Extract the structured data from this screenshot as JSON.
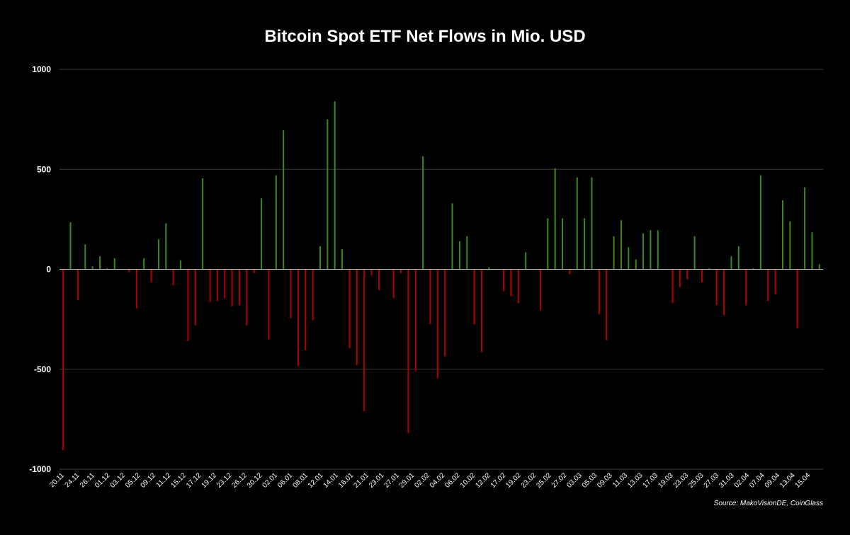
{
  "chart_data": {
    "type": "bar",
    "title": "Bitcoin Spot ETF Net Flows in Mio. USD",
    "source": "Source: MakoVisionDE, CoinGlass",
    "xlabel": "",
    "ylabel": "",
    "ylim": [
      -1000,
      1000
    ],
    "yticks": [
      1000,
      500,
      0,
      -500,
      -1000
    ],
    "ytick_labels": [
      "1000",
      "500",
      "0",
      "-500",
      "-1000"
    ],
    "xtick_labels": [
      "20.11",
      "24.11",
      "26.11",
      "01.12",
      "03.12",
      "05.12",
      "09.12",
      "11.12",
      "15.12",
      "17.12",
      "19.12",
      "23.12",
      "26.12",
      "30.12",
      "02.01",
      "06.01",
      "08.01",
      "12.01",
      "14.01",
      "16.01",
      "21.01",
      "23.01",
      "27.01",
      "29.01",
      "02.02",
      "04.02",
      "06.02",
      "10.02",
      "12.02",
      "17.02",
      "19.02",
      "23.02",
      "25.02",
      "27.02",
      "03.03",
      "05.03",
      "09.03",
      "11.03",
      "13.03",
      "17.03",
      "19.03",
      "23.03",
      "25.03",
      "27.03",
      "31.03",
      "02.04",
      "07.04",
      "09.04",
      "13.04",
      "15.04"
    ],
    "grid": true,
    "positive_color": "#3a8a1a",
    "negative_color": "#b00000",
    "values": [
      -905,
      235,
      -155,
      125,
      15,
      65,
      5,
      55,
      0,
      -15,
      -195,
      55,
      -65,
      150,
      230,
      -80,
      45,
      -360,
      -280,
      455,
      -165,
      -160,
      -145,
      -185,
      -180,
      -280,
      -20,
      355,
      -350,
      470,
      695,
      -245,
      -485,
      -405,
      -255,
      115,
      750,
      840,
      100,
      -395,
      -480,
      -710,
      -30,
      -105,
      0,
      -145,
      -20,
      -820,
      -510,
      565,
      -275,
      -545,
      -435,
      330,
      140,
      165,
      -275,
      -415,
      10,
      0,
      -110,
      -135,
      -170,
      85,
      0,
      -205,
      255,
      505,
      255,
      -25,
      460,
      255,
      460,
      -225,
      -355,
      165,
      245,
      110,
      50,
      180,
      195,
      195,
      0,
      -170,
      -90,
      -50,
      165,
      -65,
      5,
      -180,
      -230,
      65,
      115,
      -180,
      5,
      470,
      -160,
      -125,
      345,
      240,
      -295,
      410,
      185,
      25
    ]
  }
}
